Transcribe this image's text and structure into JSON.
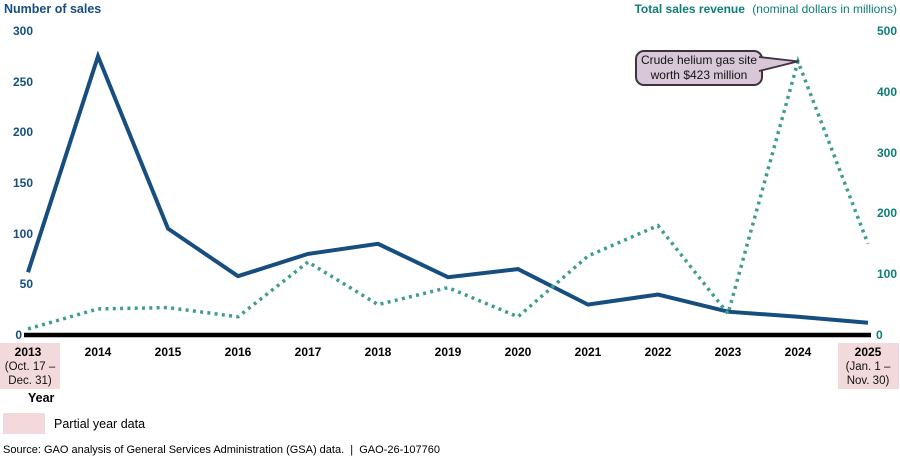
{
  "chart_data": {
    "type": "line",
    "categories": [
      "2013",
      "2014",
      "2015",
      "2016",
      "2017",
      "2018",
      "2019",
      "2020",
      "2021",
      "2022",
      "2023",
      "2024",
      "2025"
    ],
    "series": [
      {
        "name": "Number of sales",
        "axis": "left",
        "line_style": "solid",
        "color": "#164e7f",
        "values": [
          62,
          275,
          105,
          58,
          80,
          90,
          57,
          65,
          30,
          40,
          23,
          18,
          12
        ]
      },
      {
        "name": "Total sales revenue",
        "axis": "right",
        "line_style": "dotted",
        "color": "#3f9d8f",
        "values": [
          10,
          43,
          45,
          30,
          120,
          50,
          78,
          30,
          130,
          180,
          35,
          450,
          150
        ]
      }
    ],
    "left_axis": {
      "title": "Number of sales",
      "ticks": [
        0,
        50,
        100,
        150,
        200,
        250,
        300
      ],
      "range": [
        0,
        300
      ],
      "color": "#164e7f"
    },
    "right_axis": {
      "title": "Total sales revenue",
      "subtitle": "(nominal dollars in millions)",
      "ticks": [
        0,
        100,
        200,
        300,
        400,
        500
      ],
      "range": [
        0,
        500
      ],
      "color": "#0d7e76"
    },
    "grid": false,
    "legend_position": "none",
    "annotation": {
      "line1": "Crude helium gas site",
      "line2": "worth $423 million",
      "target_year": "2024",
      "target_value": 450
    }
  },
  "x_axis": {
    "label": "Year",
    "partial_start": {
      "year": "2013",
      "period_line1": "(Oct. 17 –",
      "period_line2": "Dec. 31)"
    },
    "partial_end": {
      "year": "2025",
      "period_line1": "(Jan. 1 –",
      "period_line2": "Nov. 30)"
    }
  },
  "legend": {
    "partial_year_label": "Partial year data"
  },
  "footer": {
    "source": "Source: GAO analysis of General Services Administration (GSA) data.  |  GAO-26-107760"
  },
  "colors": {
    "sales_line": "#164e7f",
    "revenue_line": "#3f9d8f",
    "left_axis_text": "#164e7f",
    "right_axis_text": "#0d7e76",
    "partial_year_fill": "#f2d9dc",
    "callout_fill": "#d7c7d7",
    "callout_border": "#3f3142",
    "axis_line": "#000000"
  }
}
